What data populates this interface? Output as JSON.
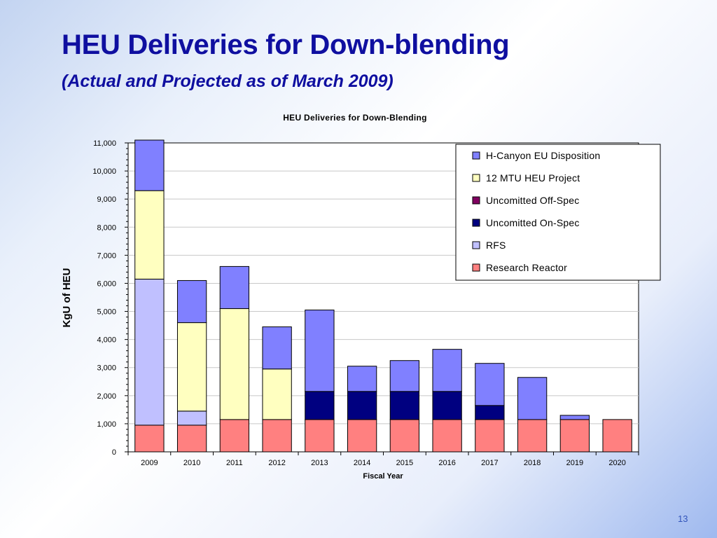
{
  "slide": {
    "title": "HEU Deliveries for Down-blending",
    "subtitle": "(Actual and Projected as of March 2009)",
    "page_number": "13"
  },
  "chart_data": {
    "type": "bar",
    "stacked": true,
    "title": "HEU Deliveries for Down-Blending",
    "xlabel": "Fiscal Year",
    "ylabel": "KgU of HEU",
    "ylim": [
      0,
      11000
    ],
    "yticks": [
      0,
      1000,
      2000,
      3000,
      4000,
      5000,
      6000,
      7000,
      8000,
      9000,
      10000,
      11000
    ],
    "ytick_labels": [
      "0",
      "1,000",
      "2,000",
      "3,000",
      "4,000",
      "5,000",
      "6,000",
      "7,000",
      "8,000",
      "9,000",
      "10,000",
      "11,000"
    ],
    "categories": [
      "2009",
      "2010",
      "2011",
      "2012",
      "2013",
      "2014",
      "2015",
      "2016",
      "2017",
      "2018",
      "2019",
      "2020"
    ],
    "grid": "horizontal",
    "legend_position": "top-right",
    "series": [
      {
        "name": "Research Reactor",
        "color": "#ff8080",
        "values": [
          950,
          950,
          1150,
          1150,
          1150,
          1150,
          1150,
          1150,
          1150,
          1150,
          1150,
          1150
        ]
      },
      {
        "name": "RFS",
        "color": "#c0c0ff",
        "values": [
          5200,
          500,
          0,
          0,
          0,
          0,
          0,
          0,
          0,
          0,
          0,
          0
        ]
      },
      {
        "name": "Uncomitted On-Spec",
        "color": "#000080",
        "values": [
          0,
          0,
          0,
          0,
          1000,
          1000,
          1000,
          1000,
          500,
          0,
          0,
          0
        ]
      },
      {
        "name": "Uncomitted Off-Spec",
        "color": "#800060",
        "values": [
          0,
          0,
          0,
          0,
          0,
          0,
          0,
          0,
          0,
          0,
          0,
          0
        ]
      },
      {
        "name": "12 MTU HEU Project",
        "color": "#ffffc0",
        "values": [
          3150,
          3150,
          3950,
          1800,
          0,
          0,
          0,
          0,
          0,
          0,
          0,
          0
        ]
      },
      {
        "name": "H-Canyon EU Disposition",
        "color": "#8080ff",
        "values": [
          1800,
          1500,
          1500,
          1500,
          2900,
          900,
          1100,
          1500,
          1500,
          1500,
          150,
          0
        ]
      }
    ],
    "legend_order": [
      "H-Canyon EU Disposition",
      "12 MTU HEU Project",
      "Uncomitted Off-Spec",
      "Uncomitted On-Spec",
      "RFS",
      "Research Reactor"
    ]
  }
}
